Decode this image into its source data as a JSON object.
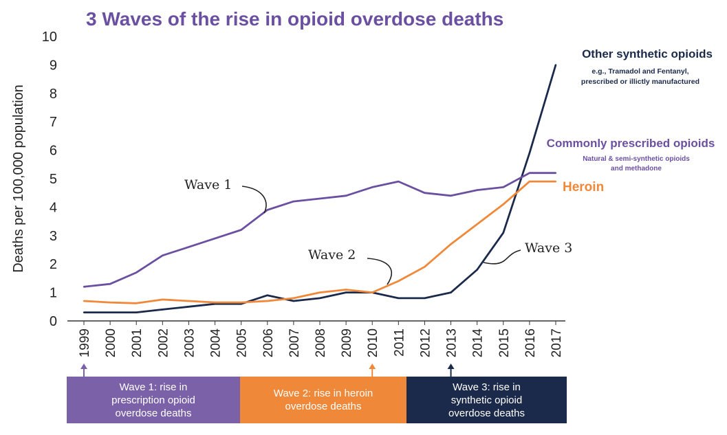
{
  "title": "3 Waves of the rise in opioid overdose deaths",
  "colors": {
    "purple": "#6b4fa0",
    "orange": "#f0883a",
    "navy": "#1b2a4a"
  },
  "chart_data": {
    "type": "line",
    "title": "3 Waves of the rise in opioid overdose deaths",
    "xlabel": "",
    "ylabel": "Deaths per 100,000 population",
    "ylim": [
      0,
      10
    ],
    "yticks": [
      "0",
      "1",
      "2",
      "3",
      "4",
      "5",
      "6",
      "7",
      "8",
      "9",
      "10"
    ],
    "categories": [
      "1999",
      "2000",
      "2001",
      "2002",
      "2003",
      "2004",
      "2005",
      "2006",
      "2007",
      "2008",
      "2009",
      "2010",
      "2011",
      "2012",
      "2013",
      "2014",
      "2015",
      "2016",
      "2017"
    ],
    "series": [
      {
        "name": "Commonly prescribed opioids",
        "sublabel": "Natural & semi-synthetic opioids\nand methadone",
        "color": "#6b4fa0",
        "values": [
          1.2,
          1.3,
          1.7,
          2.3,
          2.6,
          2.9,
          3.2,
          3.9,
          4.2,
          4.3,
          4.4,
          4.7,
          4.9,
          4.5,
          4.4,
          4.6,
          4.7,
          5.2,
          5.2
        ]
      },
      {
        "name": "Heroin",
        "sublabel": "",
        "color": "#f0883a",
        "values": [
          0.7,
          0.65,
          0.62,
          0.75,
          0.7,
          0.65,
          0.65,
          0.7,
          0.8,
          1.0,
          1.1,
          1.0,
          1.4,
          1.9,
          2.7,
          3.4,
          4.1,
          4.9,
          4.9
        ]
      },
      {
        "name": "Other synthetic opioids",
        "sublabel": "e.g., Tramadol and Fentanyl,\nprescribed or illictly manufactured",
        "color": "#1b2a4a",
        "values": [
          0.3,
          0.3,
          0.3,
          0.4,
          0.5,
          0.6,
          0.6,
          0.9,
          0.7,
          0.8,
          1.0,
          1.0,
          0.8,
          0.8,
          1.0,
          1.8,
          3.1,
          5.9,
          9.0
        ]
      }
    ],
    "annotations": [
      {
        "text": "Wave 1"
      },
      {
        "text": "Wave 2"
      },
      {
        "text": "Wave 3"
      }
    ],
    "grid": false,
    "legend": "inline labels at right"
  },
  "bands": [
    {
      "text": "Wave 1: rise in\nprescription opioid\noverdose deaths",
      "color": "#7b62a8",
      "start_year": "1999"
    },
    {
      "text": "Wave 2: rise in heroin\noverdose deaths",
      "color": "#f0883a",
      "start_year": "2010"
    },
    {
      "text": "Wave 3: rise in\nsynthetic opioid\noverdose deaths",
      "color": "#1b2a4a",
      "start_year": "2013"
    }
  ]
}
